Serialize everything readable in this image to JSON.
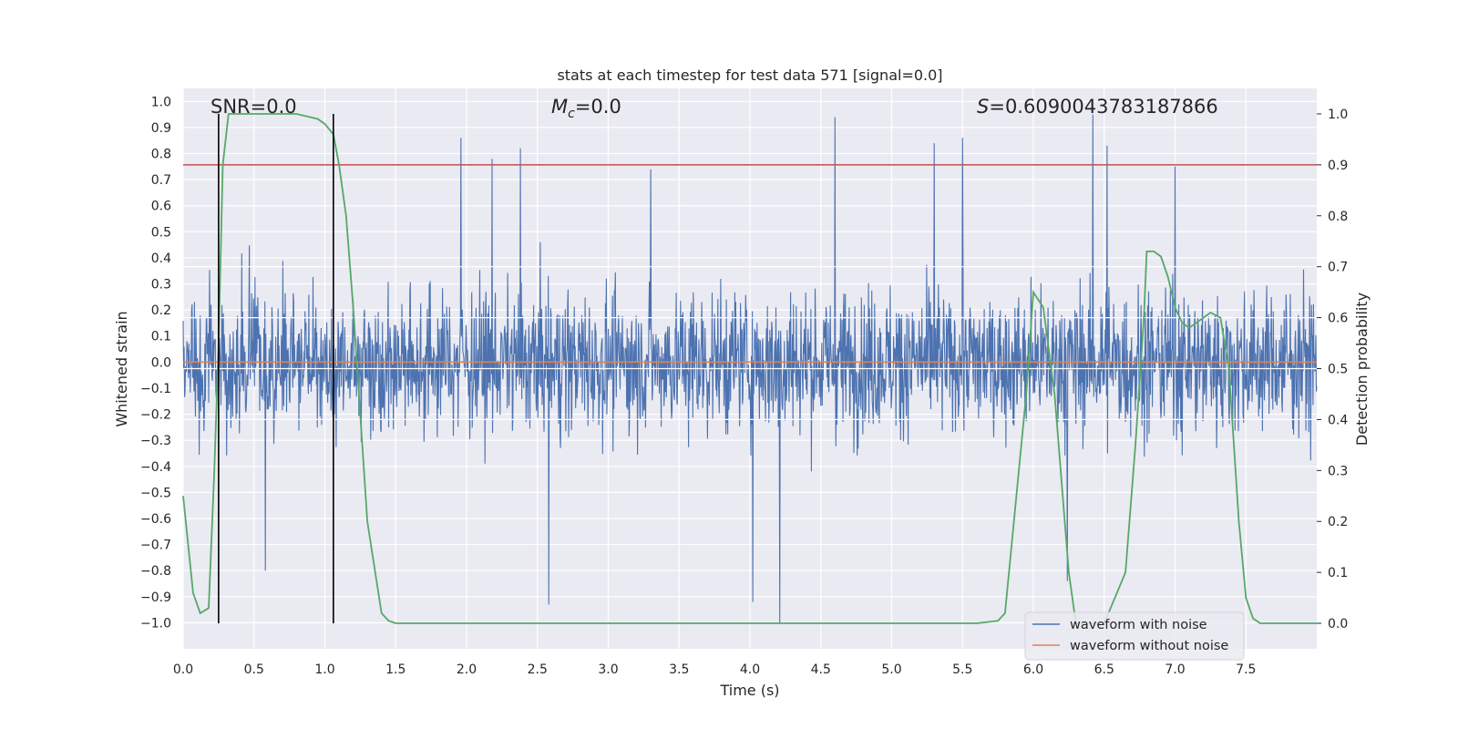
{
  "chart_data": {
    "type": "line",
    "title": "stats at each timestep for test data 571 [signal=0.0]",
    "xlabel": "Time (s)",
    "ylabel_left": "Whitened strain",
    "ylabel_right": "Detection probability",
    "xlim": [
      0.0,
      8.0
    ],
    "ylim_left": [
      -1.1,
      1.05
    ],
    "ylim_right": [
      -0.05,
      1.05
    ],
    "x_ticks": [
      "0.0",
      "0.5",
      "1.0",
      "1.5",
      "2.0",
      "2.5",
      "3.0",
      "3.5",
      "4.0",
      "4.5",
      "5.0",
      "5.5",
      "6.0",
      "6.5",
      "7.0",
      "7.5"
    ],
    "y_left_ticks": [
      "1.0",
      "0.9",
      "0.8",
      "0.7",
      "0.6",
      "0.5",
      "0.4",
      "0.3",
      "0.2",
      "0.1",
      "0.0",
      "-0.1",
      "-0.2",
      "-0.3",
      "-0.4",
      "-0.5",
      "-0.6",
      "-0.7",
      "-0.8",
      "-0.9",
      "-1.0"
    ],
    "y_right_ticks": [
      "1.0",
      "0.9",
      "0.8",
      "0.7",
      "0.6",
      "0.5",
      "0.4",
      "0.3",
      "0.2",
      "0.1",
      "0.0"
    ],
    "annotations": {
      "snr": "SNR=0.0",
      "mc_symbol": "M",
      "mc_subscript": "c",
      "mc_value": "=0.0",
      "s_symbol": "S",
      "s_value": "=0.6090043783187866"
    },
    "threshold": {
      "axis": "right",
      "value": 0.9,
      "color": "#c44e52"
    },
    "vertical_markers": [
      0.25,
      1.06
    ],
    "noisy_waveform": {
      "name": "waveform with noise",
      "color": "#4c72b0",
      "typical_envelope": [
        -0.45,
        0.5
      ],
      "peaks": [
        {
          "x": 1.96,
          "y": 0.86
        },
        {
          "x": 2.18,
          "y": 0.78
        },
        {
          "x": 2.38,
          "y": 0.82
        },
        {
          "x": 3.3,
          "y": 0.74
        },
        {
          "x": 4.6,
          "y": 0.94
        },
        {
          "x": 5.3,
          "y": 0.84
        },
        {
          "x": 5.5,
          "y": 0.86
        },
        {
          "x": 6.42,
          "y": 0.95
        },
        {
          "x": 6.52,
          "y": 0.83
        },
        {
          "x": 7.0,
          "y": 0.75
        },
        {
          "x": 2.58,
          "y": -0.93
        },
        {
          "x": 4.02,
          "y": -0.92
        },
        {
          "x": 4.21,
          "y": -1.0
        },
        {
          "x": 0.58,
          "y": -0.8
        },
        {
          "x": 6.24,
          "y": -0.84
        }
      ]
    },
    "clean_waveform": {
      "name": "waveform without noise",
      "color": "#dd8452",
      "value": 0.0
    },
    "probability": {
      "color": "#55a868",
      "x": [
        0.0,
        0.07,
        0.12,
        0.18,
        0.22,
        0.25,
        0.28,
        0.32,
        0.4,
        0.6,
        0.8,
        0.95,
        1.0,
        1.06,
        1.1,
        1.15,
        1.2,
        1.3,
        1.4,
        1.45,
        1.5,
        2.0,
        3.0,
        4.0,
        5.0,
        5.6,
        5.75,
        5.8,
        5.95,
        6.0,
        6.07,
        6.15,
        6.25,
        6.3,
        6.5,
        6.65,
        6.72,
        6.78,
        6.8,
        6.85,
        6.9,
        6.95,
        7.0,
        7.05,
        7.1,
        7.15,
        7.2,
        7.25,
        7.32,
        7.38,
        7.45,
        7.5,
        7.55,
        7.6,
        8.0
      ],
      "values": [
        0.25,
        0.06,
        0.02,
        0.03,
        0.3,
        0.55,
        0.9,
        1.0,
        1.0,
        1.0,
        1.0,
        0.99,
        0.98,
        0.96,
        0.9,
        0.8,
        0.62,
        0.2,
        0.02,
        0.005,
        0.0,
        0.0,
        0.0,
        0.0,
        0.0,
        0.0,
        0.005,
        0.02,
        0.45,
        0.65,
        0.62,
        0.45,
        0.1,
        0.0,
        0.0,
        0.1,
        0.35,
        0.6,
        0.73,
        0.73,
        0.72,
        0.68,
        0.62,
        0.59,
        0.58,
        0.59,
        0.6,
        0.61,
        0.6,
        0.5,
        0.2,
        0.05,
        0.01,
        0.0,
        0.0
      ]
    },
    "legend": {
      "placement": "lower-right",
      "entries": [
        {
          "label": "waveform with noise",
          "color": "#4c72b0"
        },
        {
          "label": "waveform without noise",
          "color": "#dd8452"
        }
      ]
    }
  }
}
